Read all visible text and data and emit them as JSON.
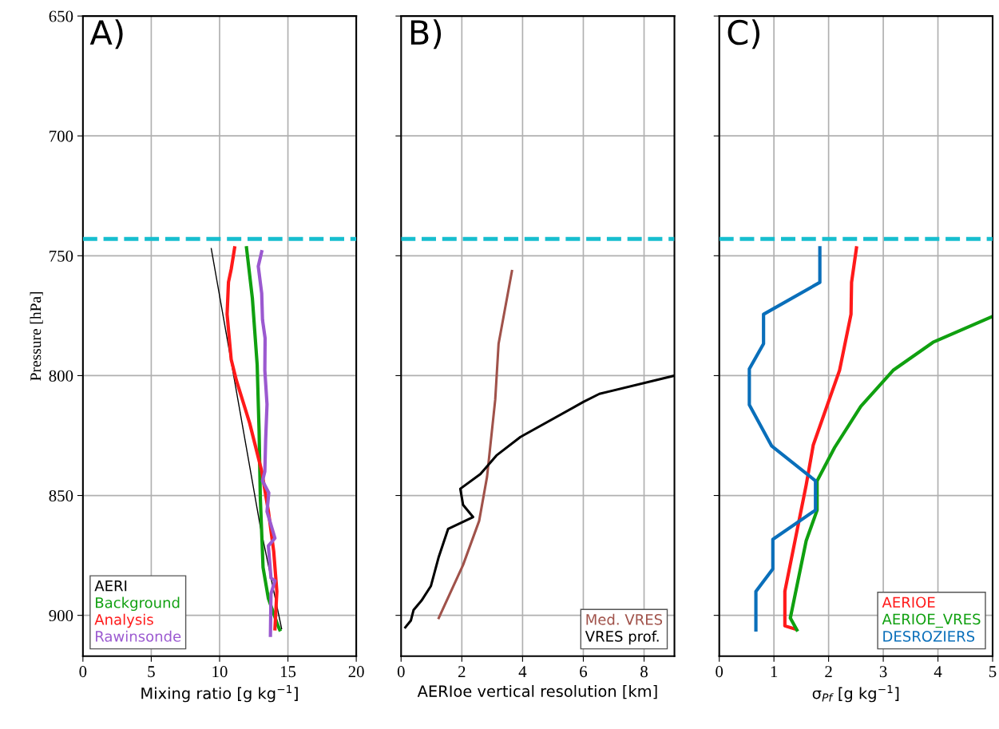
{
  "chart_data": [
    {
      "type": "line",
      "xlabel": "Mixing ratio [g kg$^{−1}$]",
      "ylabel": "Pressure [hPa]",
      "annotations": [
        "A)"
      ],
      "xlim": [
        0,
        20
      ],
      "xticks": [
        0,
        5,
        10,
        15,
        20
      ],
      "ylim": [
        917,
        650
      ],
      "yticks": [
        650,
        700,
        750,
        800,
        850,
        900
      ],
      "grid": true,
      "legend": "bottom left",
      "line_style": "solid",
      "ref_lines": [
        {
          "axis": "y",
          "value": 743,
          "color": "#17becf",
          "line_style": "dashed"
        }
      ],
      "series": [
        {
          "name": "AERI",
          "color": "#000000",
          "x": [
            9.39,
            12.98,
            14.54
          ],
          "values": [
            747,
            863,
            905.6
          ]
        },
        {
          "name": "Background",
          "color": "#10a010",
          "x": [
            11.97,
            12.4,
            12.75,
            12.89,
            12.98,
            13.18,
            13.57,
            14.25,
            14.4
          ],
          "values": [
            746.7,
            767.8,
            795.5,
            823,
            851,
            880,
            893,
            904,
            906
          ]
        },
        {
          "name": "Analysis",
          "color": "#ff1a1a",
          "x": [
            11.1,
            10.85,
            10.65,
            10.55,
            10.85,
            11.23,
            12.2,
            13.08,
            13.57,
            13.96,
            14.19,
            14.05
          ],
          "values": [
            746.7,
            755.6,
            761,
            774.4,
            793.3,
            802,
            819.8,
            839.8,
            856.5,
            873.3,
            890,
            905.6
          ]
        },
        {
          "name": "Rawinsonde",
          "color": "#9b59d0",
          "x": [
            13.08,
            12.83,
            13.08,
            13.14,
            13.33,
            13.31,
            13.47,
            13.37,
            13.31,
            13.14,
            13.6,
            13.47,
            14.05,
            13.57,
            13.76,
            14.05,
            13.76,
            13.72
          ],
          "values": [
            748.3,
            754.4,
            765.6,
            776.7,
            784.4,
            797.8,
            812,
            826.7,
            840,
            843.9,
            848.9,
            856.7,
            867.8,
            871,
            884.4,
            885.6,
            891,
            908.3
          ]
        }
      ]
    },
    {
      "type": "line",
      "xlabel": "AERIoe vertical resolution [km]",
      "annotations": [
        "B)"
      ],
      "xlim": [
        0,
        9
      ],
      "xticks": [
        0,
        2,
        4,
        6,
        8
      ],
      "ylim": [
        917,
        650
      ],
      "yticks": [
        650,
        700,
        750,
        800,
        850,
        900
      ],
      "grid": true,
      "legend": "bottom right",
      "tick_labels": "x",
      "line_style": "solid",
      "ref_lines": [
        {
          "axis": "y",
          "value": 743,
          "color": "#17becf",
          "line_style": "dashed"
        }
      ],
      "series": [
        {
          "name": "Med. VRES",
          "color": "#a0524a",
          "x": [
            3.65,
            3.21,
            3.1,
            2.83,
            2.57,
            2.04,
            1.24
          ],
          "values": [
            756.4,
            786.7,
            810,
            842.2,
            860.6,
            879,
            901.1
          ]
        },
        {
          "name": "VRES prof.",
          "color": "#000000",
          "x": [
            9,
            6.53,
            6.0,
            3.93,
            3.14,
            2.61,
            1.95,
            2.04,
            2.37,
            1.55,
            1.24,
            0.98,
            0.67,
            0.41,
            0.32,
            0.14
          ],
          "values": [
            800,
            807.6,
            811,
            825.6,
            833.3,
            841.1,
            847.2,
            853.9,
            859,
            863.9,
            875.6,
            887.8,
            893.9,
            897.8,
            902.2,
            905
          ]
        }
      ]
    },
    {
      "type": "line",
      "xlabel": "σ$_{Pf}$ [g kg$^{−1}$]",
      "annotations": [
        "C)"
      ],
      "xlim": [
        0,
        5
      ],
      "xticks": [
        0,
        1,
        2,
        3,
        4,
        5
      ],
      "ylim": [
        917,
        650
      ],
      "yticks": [
        650,
        700,
        750,
        800,
        850,
        900
      ],
      "grid": true,
      "legend": "bottom right",
      "tick_labels": "x",
      "line_style": "solid",
      "ref_lines": [
        {
          "axis": "y",
          "value": 743,
          "color": "#17becf",
          "line_style": "dashed"
        }
      ],
      "series": [
        {
          "name": "AERIOE",
          "color": "#ff1a1a",
          "x": [
            2.51,
            2.42,
            2.41,
            2.2,
            1.72,
            1.59,
            1.2,
            1.2,
            1.37
          ],
          "values": [
            746.7,
            761.1,
            774.4,
            797.8,
            828.9,
            845.6,
            890,
            904.4,
            905.6
          ]
        },
        {
          "name": "AERIOE_VRES",
          "color": "#10a010",
          "x": [
            5.0,
            3.91,
            3.18,
            2.59,
            2.11,
            1.79,
            1.79,
            1.59,
            1.3,
            1.42
          ],
          "values": [
            775.3,
            786.1,
            797.8,
            812.8,
            830,
            843.9,
            856.1,
            868.9,
            901.1,
            906.1
          ]
        },
        {
          "name": "DESROZIERS",
          "color": "#0a6fba",
          "x": [
            1.84,
            1.84,
            0.81,
            0.81,
            0.55,
            0.55,
            0.96,
            1.76,
            1.76,
            0.98,
            0.98,
            0.67,
            0.67
          ],
          "values": [
            746.7,
            761.1,
            774.4,
            786.7,
            797.2,
            812.2,
            829.4,
            843.9,
            856.1,
            868.3,
            880.6,
            890,
            906.1
          ]
        }
      ]
    }
  ]
}
